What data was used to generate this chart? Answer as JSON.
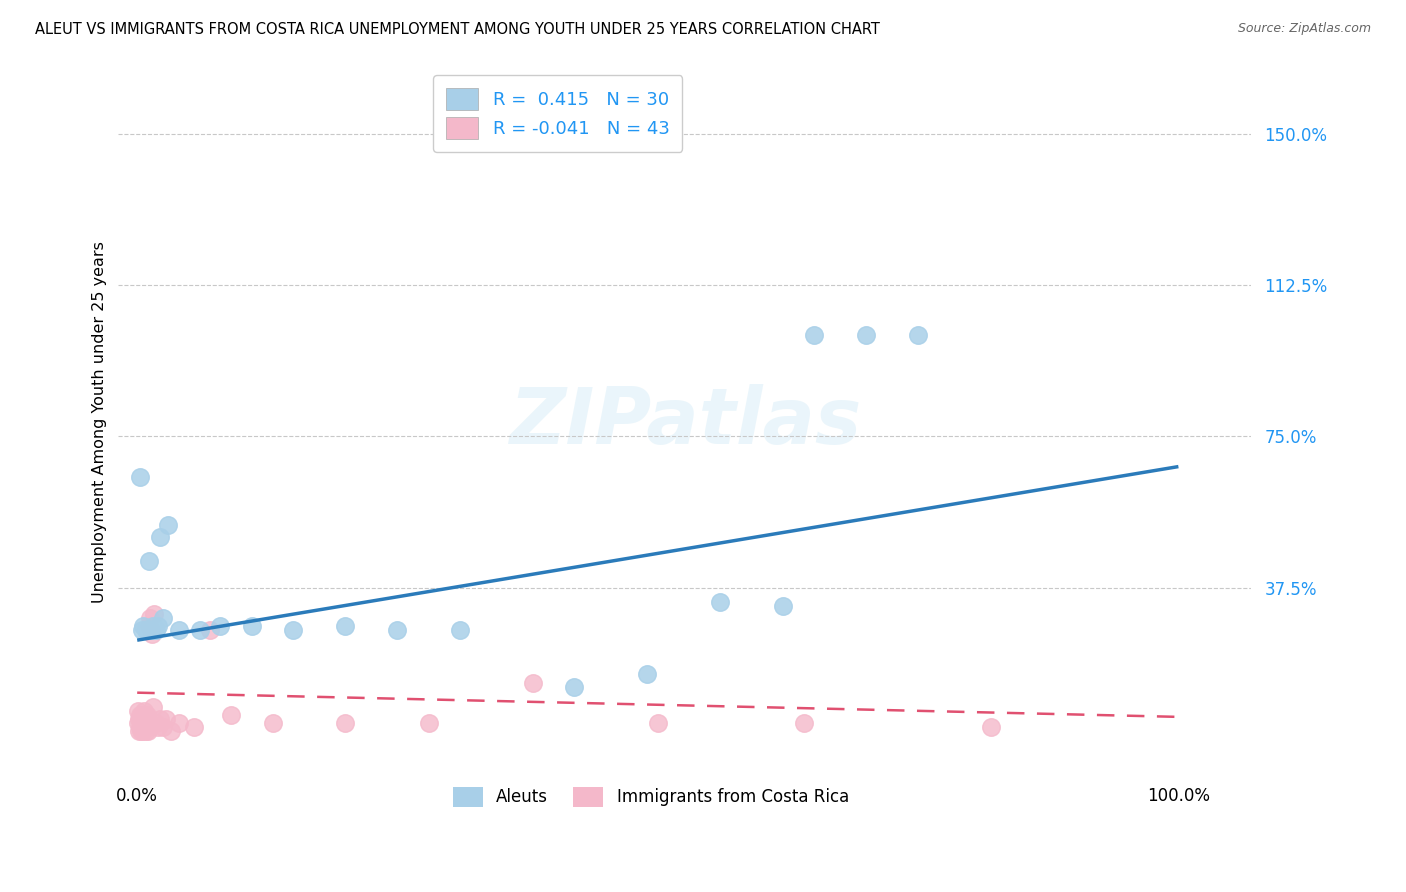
{
  "title": "ALEUT VS IMMIGRANTS FROM COSTA RICA UNEMPLOYMENT AMONG YOUTH UNDER 25 YEARS CORRELATION CHART",
  "source": "Source: ZipAtlas.com",
  "ylabel": "Unemployment Among Youth under 25 years",
  "y_tick_vals": [
    0.375,
    0.75,
    1.125,
    1.5
  ],
  "y_tick_labels": [
    "37.5%",
    "75.0%",
    "112.5%",
    "150.0%"
  ],
  "xlim": [
    -0.018,
    1.07
  ],
  "ylim": [
    -0.08,
    1.65
  ],
  "watermark": "ZIPatlas",
  "aleuts_R": 0.415,
  "aleuts_N": 30,
  "costa_rica_R": -0.041,
  "costa_rica_N": 43,
  "aleuts_color": "#a8cfe8",
  "costa_rica_color": "#f4b8ca",
  "aleuts_edge_color": "#a8cfe8",
  "costa_rica_edge_color": "#f4b8ca",
  "aleuts_line_color": "#2b7bba",
  "costa_rica_line_color": "#e05070",
  "aleuts_x": [
    0.003,
    0.005,
    0.006,
    0.008,
    0.01,
    0.011,
    0.012,
    0.013,
    0.015,
    0.016,
    0.018,
    0.02,
    0.022,
    0.025,
    0.03,
    0.04,
    0.06,
    0.08,
    0.11,
    0.15,
    0.2,
    0.25,
    0.31,
    0.42,
    0.49,
    0.56,
    0.62,
    0.65,
    0.7,
    0.75
  ],
  "aleuts_y": [
    0.65,
    0.27,
    0.28,
    0.27,
    0.27,
    0.44,
    0.27,
    0.27,
    0.28,
    0.27,
    0.27,
    0.28,
    0.5,
    0.3,
    0.53,
    0.27,
    0.27,
    0.28,
    0.28,
    0.27,
    0.28,
    0.27,
    0.27,
    0.13,
    0.16,
    0.34,
    0.33,
    1.0,
    1.0,
    1.0
  ],
  "costa_rica_x": [
    0.001,
    0.001,
    0.002,
    0.002,
    0.003,
    0.003,
    0.004,
    0.004,
    0.005,
    0.005,
    0.006,
    0.006,
    0.007,
    0.007,
    0.008,
    0.008,
    0.009,
    0.009,
    0.01,
    0.01,
    0.011,
    0.012,
    0.013,
    0.014,
    0.015,
    0.016,
    0.018,
    0.02,
    0.022,
    0.025,
    0.028,
    0.032,
    0.04,
    0.055,
    0.07,
    0.09,
    0.13,
    0.2,
    0.28,
    0.38,
    0.5,
    0.64,
    0.82
  ],
  "costa_rica_y": [
    0.04,
    0.07,
    0.02,
    0.05,
    0.03,
    0.06,
    0.02,
    0.04,
    0.03,
    0.06,
    0.02,
    0.05,
    0.03,
    0.07,
    0.02,
    0.05,
    0.03,
    0.06,
    0.02,
    0.04,
    0.28,
    0.3,
    0.27,
    0.26,
    0.08,
    0.31,
    0.04,
    0.03,
    0.05,
    0.03,
    0.05,
    0.02,
    0.04,
    0.03,
    0.27,
    0.06,
    0.04,
    0.04,
    0.04,
    0.14,
    0.04,
    0.04,
    0.03
  ],
  "aleuts_line_x0": 0.0,
  "aleuts_line_y0": 0.245,
  "aleuts_line_x1": 1.0,
  "aleuts_line_y1": 0.675,
  "costa_rica_line_x0": 0.0,
  "costa_rica_line_y0": 0.115,
  "costa_rica_line_x1": 1.0,
  "costa_rica_line_y1": 0.055
}
